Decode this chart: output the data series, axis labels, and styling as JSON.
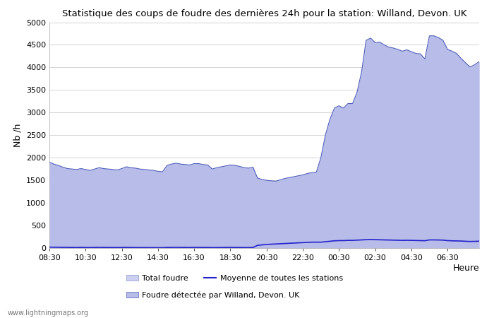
{
  "title": "Statistique des coups de foudre des dernières 24h pour la station: Willand, Devon. UK",
  "ylabel": "Nb /h",
  "xlabel": "Heure",
  "watermark": "www.lightningmaps.org",
  "ylim": [
    0,
    5000
  ],
  "yticks": [
    0,
    500,
    1000,
    1500,
    2000,
    2500,
    3000,
    3500,
    4000,
    4500,
    5000
  ],
  "xtick_labels": [
    "08:30",
    "10:30",
    "12:30",
    "14:30",
    "16:30",
    "18:30",
    "20:30",
    "22:30",
    "00:30",
    "02:30",
    "04:30",
    "06:30"
  ],
  "bg_color": "#ffffff",
  "plot_bg_color": "#ffffff",
  "grid_color": "#cccccc",
  "total_foudre_color": "#cdd0f0",
  "total_foudre_edge": "#8890d0",
  "detected_color": "#b8bce8",
  "detected_edge": "#5060bb",
  "moyenne_color": "#2222cc",
  "legend_labels": [
    "Total foudre",
    "Moyenne de toutes les stations",
    "Foudre détectée par Willand, Devon. UK"
  ],
  "x_values": [
    0,
    1,
    2,
    3,
    4,
    5,
    6,
    7,
    8,
    9,
    10,
    11,
    12,
    13,
    14,
    15,
    16,
    17,
    18,
    19,
    20,
    21,
    22,
    23,
    24,
    25,
    26,
    27,
    28,
    29,
    30,
    31,
    32,
    33,
    34,
    35,
    36,
    37,
    38,
    39,
    40,
    41,
    42,
    43,
    44,
    45,
    46,
    47,
    48,
    49,
    50,
    51,
    52,
    53,
    54,
    55,
    56,
    57,
    58,
    59,
    60,
    61,
    62,
    63,
    64,
    65,
    66,
    67,
    68,
    69,
    70,
    71,
    72,
    73,
    74,
    75,
    76,
    77,
    78,
    79,
    80,
    81,
    82,
    83,
    84,
    85,
    86,
    87,
    88,
    89,
    90,
    91,
    92,
    93,
    94,
    95
  ],
  "total_foudre_y": [
    1900,
    1860,
    1830,
    1790,
    1760,
    1750,
    1740,
    1760,
    1740,
    1720,
    1750,
    1780,
    1760,
    1750,
    1740,
    1730,
    1760,
    1800,
    1780,
    1770,
    1750,
    1740,
    1730,
    1720,
    1700,
    1690,
    1830,
    1860,
    1880,
    1860,
    1850,
    1840,
    1870,
    1870,
    1850,
    1840,
    1750,
    1780,
    1800,
    1820,
    1840,
    1830,
    1810,
    1780,
    1770,
    1790,
    1550,
    1520,
    1500,
    1490,
    1480,
    1510,
    1540,
    1560,
    1580,
    1600,
    1620,
    1650,
    1670,
    1680,
    2000,
    2500,
    2850,
    3100,
    3150,
    3100,
    3200,
    3200,
    3450,
    3900,
    4600,
    4650,
    4550,
    4560,
    4500,
    4450,
    4430,
    4400,
    4360,
    4390,
    4350,
    4310,
    4300,
    4190,
    4700,
    4700,
    4660,
    4600,
    4400,
    4360,
    4310,
    4200,
    4100,
    4010,
    4060,
    4130
  ],
  "detected_y": [
    1900,
    1860,
    1830,
    1790,
    1760,
    1750,
    1740,
    1760,
    1740,
    1720,
    1750,
    1780,
    1760,
    1750,
    1740,
    1730,
    1760,
    1800,
    1780,
    1770,
    1750,
    1740,
    1730,
    1720,
    1700,
    1690,
    1830,
    1860,
    1880,
    1860,
    1850,
    1840,
    1870,
    1870,
    1850,
    1840,
    1750,
    1780,
    1800,
    1820,
    1840,
    1830,
    1810,
    1780,
    1770,
    1790,
    1550,
    1520,
    1500,
    1490,
    1480,
    1510,
    1540,
    1560,
    1580,
    1600,
    1620,
    1650,
    1670,
    1680,
    2000,
    2500,
    2850,
    3100,
    3150,
    3100,
    3200,
    3200,
    3450,
    3900,
    4600,
    4650,
    4550,
    4560,
    4500,
    4450,
    4430,
    4400,
    4360,
    4390,
    4350,
    4310,
    4300,
    4190,
    4700,
    4700,
    4660,
    4600,
    4400,
    4360,
    4310,
    4200,
    4100,
    4010,
    4060,
    4130
  ],
  "moyenne_y": [
    20,
    18,
    16,
    15,
    14,
    13,
    12,
    14,
    12,
    11,
    13,
    15,
    13,
    12,
    12,
    11,
    12,
    14,
    12,
    11,
    10,
    10,
    9,
    9,
    8,
    8,
    13,
    14,
    15,
    14,
    13,
    12,
    14,
    14,
    13,
    12,
    10,
    11,
    12,
    13,
    14,
    13,
    12,
    11,
    10,
    12,
    60,
    70,
    80,
    85,
    90,
    95,
    100,
    105,
    110,
    115,
    120,
    125,
    130,
    130,
    130,
    140,
    150,
    160,
    165,
    165,
    170,
    170,
    175,
    180,
    185,
    190,
    185,
    183,
    180,
    178,
    175,
    173,
    170,
    172,
    170,
    168,
    165,
    162,
    180,
    180,
    178,
    175,
    165,
    160,
    158,
    155,
    150,
    145,
    148,
    152
  ],
  "xtick_positions": [
    0,
    8,
    16,
    24,
    32,
    40,
    48,
    56,
    64,
    72,
    80,
    88
  ]
}
